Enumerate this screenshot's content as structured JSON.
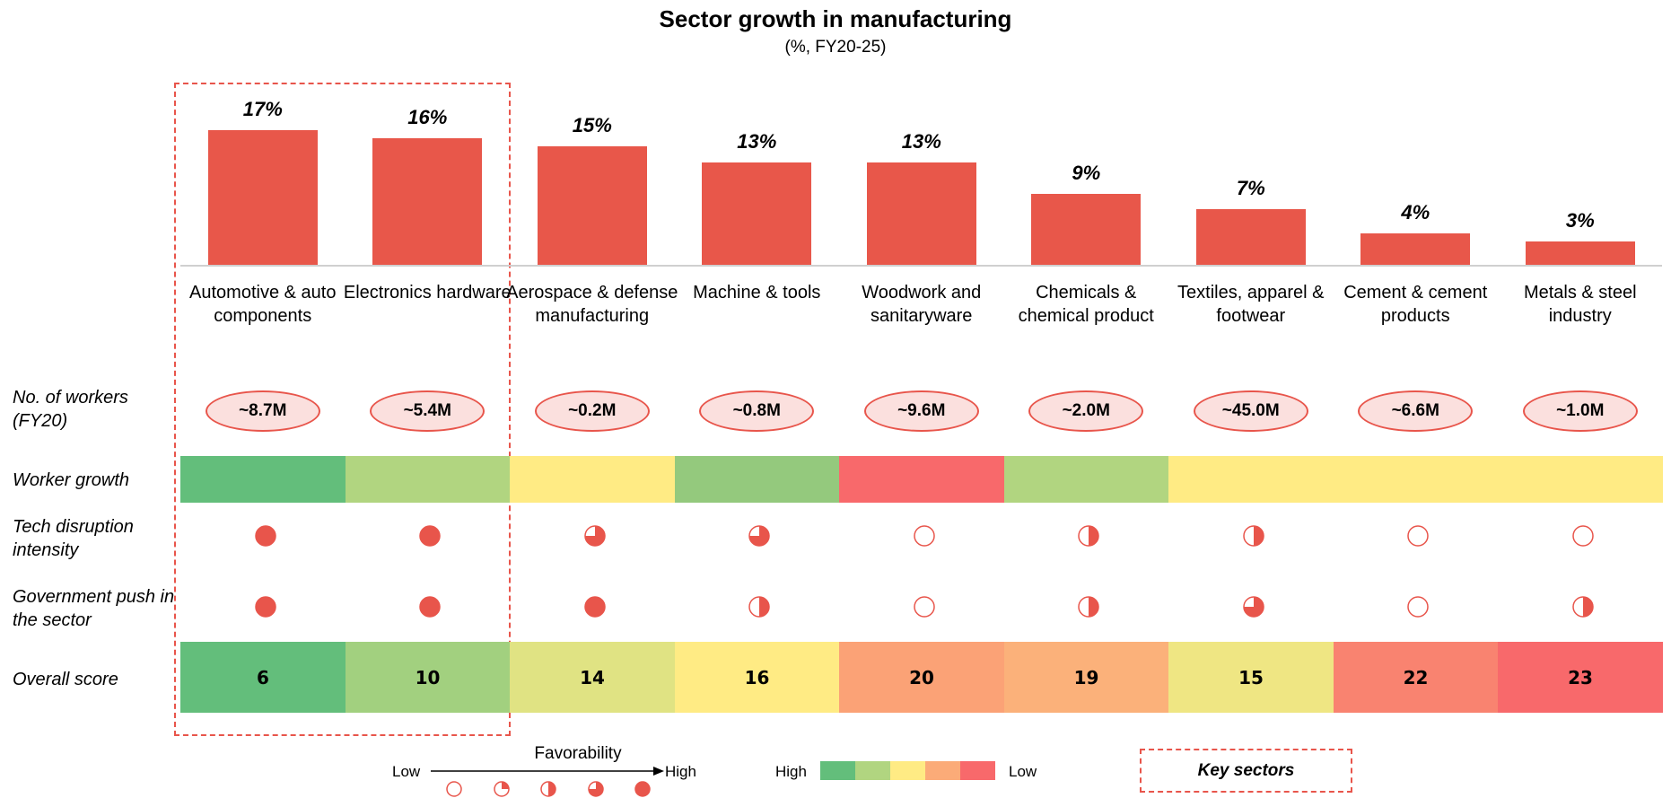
{
  "chart_data": {
    "type": "bar",
    "title": "Sector growth in manufacturing",
    "subtitle": "(%, FY20-25)",
    "categories": [
      "Automotive & auto components",
      "Electronics hardware",
      "Aerospace & defense manufacturing",
      "Machine & tools",
      "Woodwork and sanitaryware",
      "Chemicals & chemical product",
      "Textiles, apparel & footwear",
      "Cement & cement products",
      "Metals & steel industry"
    ],
    "values": [
      17,
      16,
      15,
      13,
      13,
      9,
      7,
      4,
      3
    ],
    "value_labels": [
      "17%",
      "16%",
      "15%",
      "13%",
      "13%",
      "9%",
      "7%",
      "4%",
      "3%"
    ],
    "color": "#e8574a"
  },
  "rows": {
    "workers": {
      "label": "No. of workers (FY20)",
      "values": [
        "~8.7M",
        "~5.4M",
        "~0.2M",
        "~0.8M",
        "~9.6M",
        "~2.0M",
        "~45.0M",
        "~6.6M",
        "~1.0M"
      ]
    },
    "worker_growth": {
      "label": "Worker growth",
      "colors": [
        "#63be7b",
        "#b1d580",
        "#ffeb84",
        "#94c97d",
        "#f8696b",
        "#b1d580",
        "#ffeb84",
        "#ffeb84",
        "#ffeb84"
      ]
    },
    "tech_disruption": {
      "label": "Tech disruption intensity",
      "values": [
        4,
        4,
        3,
        3,
        0,
        2,
        2,
        0,
        0
      ]
    },
    "government_push": {
      "label": "Government push in the sector",
      "values": [
        4,
        4,
        4,
        2,
        0,
        2,
        3,
        0,
        2
      ]
    },
    "overall_score": {
      "label": "Overall score",
      "values": [
        6,
        10,
        14,
        16,
        20,
        19,
        15,
        22,
        23
      ],
      "colors": [
        "#63be7b",
        "#a2d07f",
        "#e0e383",
        "#ffeb84",
        "#fba276",
        "#fbb17a",
        "#efe683",
        "#f98370",
        "#f8696b"
      ]
    }
  },
  "legend": {
    "favorability": "Favorability",
    "low": "Low",
    "high": "High",
    "levels": [
      0,
      1,
      2,
      3,
      4
    ],
    "color_high": "High",
    "color_low": "Low",
    "colors": [
      "#63be7b",
      "#b1d580",
      "#ffeb84",
      "#fbab78",
      "#f8696b"
    ],
    "key": "Key sectors"
  }
}
